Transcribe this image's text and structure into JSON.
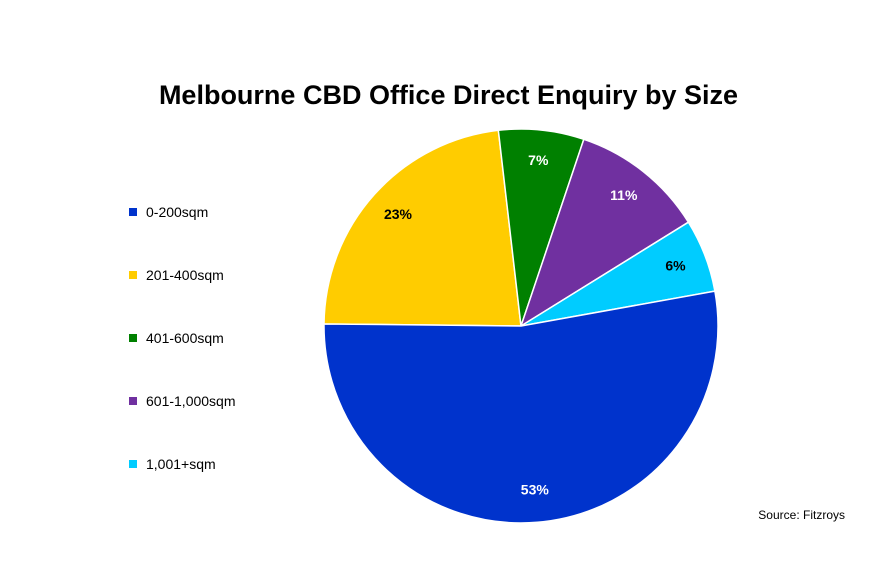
{
  "chart_data": {
    "type": "pie",
    "title": "Melbourne CBD Office Direct Enquiry by Size",
    "categories": [
      "0-200sqm",
      "201-400sqm",
      "401-600sqm",
      "601-1,000sqm",
      "1,001+sqm"
    ],
    "values": [
      53,
      23,
      7,
      11,
      6
    ],
    "value_labels": [
      "53%",
      "23%",
      "7%",
      "11%",
      "6%"
    ],
    "colors": [
      "#0033cc",
      "#ffcc00",
      "#008000",
      "#7030a0",
      "#00ccff"
    ],
    "label_colors": [
      "#ffffff",
      "#000000",
      "#ffffff",
      "#ffffff",
      "#000000"
    ],
    "legend_position": "left",
    "source": "Source: Fitzroys"
  }
}
